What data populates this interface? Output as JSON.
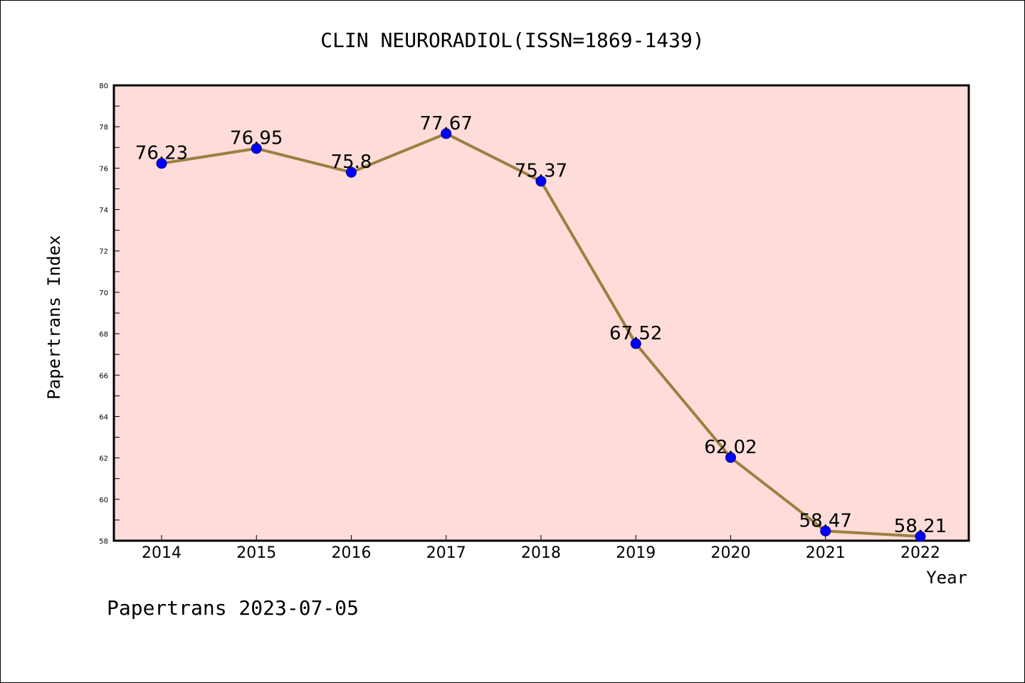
{
  "chart_data": {
    "type": "line",
    "title": "CLIN NEURORADIOL(ISSN=1869-1439)",
    "xlabel": "Year",
    "ylabel": "Papertrans Index",
    "categories": [
      "2014",
      "2015",
      "2016",
      "2017",
      "2018",
      "2019",
      "2020",
      "2021",
      "2022"
    ],
    "values": [
      76.23,
      76.95,
      75.8,
      77.67,
      75.37,
      67.52,
      62.02,
      58.47,
      58.21
    ],
    "data_labels": [
      "76.23",
      "76.95",
      "75.8",
      "77.67",
      "75.37",
      "67.52",
      "62.02",
      "58.47",
      "58.21"
    ],
    "ylim": [
      58,
      80
    ],
    "yticks": [
      "58",
      "60",
      "62",
      "64",
      "66",
      "68",
      "70",
      "72",
      "74",
      "76",
      "78",
      "80"
    ],
    "grid": false,
    "colors": {
      "plot_background": "#fddcd9",
      "line": "#9b8040",
      "marker": "#0000ff"
    }
  },
  "footer": "Papertrans 2023-07-05"
}
